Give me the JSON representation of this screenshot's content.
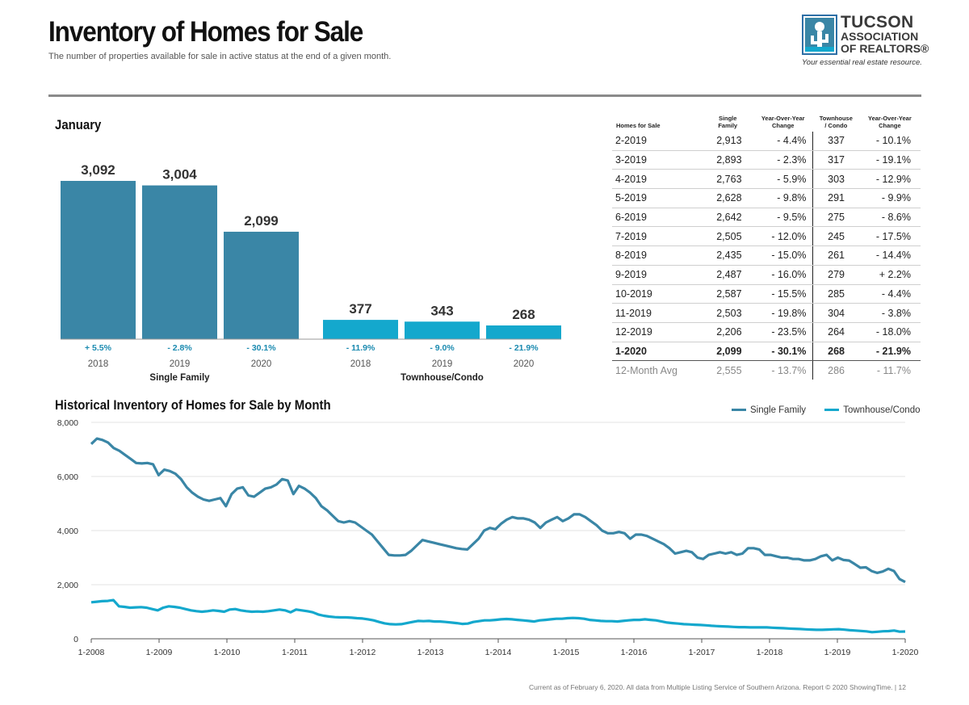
{
  "header": {
    "title": "Inventory of Homes for Sale",
    "subtitle": "The number of properties available for sale in active status at the end of a given month."
  },
  "logo": {
    "line1": "TUCSON",
    "line2": "ASSOCIATION",
    "line3": "OF REALTORS®",
    "tagline": "Your essential real estate resource."
  },
  "footnote": "Current as of February 6, 2020. All data from Multiple Listing Service of Southern Arizona. Report © 2020 ShowingTime. | 12",
  "colors": {
    "single_family": "#3a86a6",
    "townhouse": "#14a8cd",
    "change_text": "#1a8ab0"
  },
  "chart_data": [
    {
      "type": "bar",
      "title": "January",
      "groups": [
        {
          "name": "Single Family",
          "bars": [
            {
              "year": "2018",
              "value": 3092,
              "label": "3,092",
              "change": "+ 5.5%"
            },
            {
              "year": "2019",
              "value": 3004,
              "label": "3,004",
              "change": "- 2.8%"
            },
            {
              "year": "2020",
              "value": 2099,
              "label": "2,099",
              "change": "- 30.1%"
            }
          ]
        },
        {
          "name": "Townhouse/Condo",
          "bars": [
            {
              "year": "2018",
              "value": 377,
              "label": "377",
              "change": "- 11.9%"
            },
            {
              "year": "2019",
              "value": 343,
              "label": "343",
              "change": "- 9.0%"
            },
            {
              "year": "2020",
              "value": 268,
              "label": "268",
              "change": "- 21.9%"
            }
          ]
        }
      ]
    },
    {
      "type": "table",
      "headers": [
        [
          "Homes for Sale"
        ],
        [
          "Single",
          "Family"
        ],
        [
          "Year-Over-Year",
          "Change"
        ],
        [
          "Townhouse",
          "/ Condo"
        ],
        [
          "Year-Over-Year",
          "Change"
        ]
      ],
      "rows": [
        [
          "2-2019",
          "2,913",
          "- 4.4%",
          "337",
          "- 10.1%"
        ],
        [
          "3-2019",
          "2,893",
          "- 2.3%",
          "317",
          "- 19.1%"
        ],
        [
          "4-2019",
          "2,763",
          "- 5.9%",
          "303",
          "- 12.9%"
        ],
        [
          "5-2019",
          "2,628",
          "- 9.8%",
          "291",
          "- 9.9%"
        ],
        [
          "6-2019",
          "2,642",
          "- 9.5%",
          "275",
          "- 8.6%"
        ],
        [
          "7-2019",
          "2,505",
          "- 12.0%",
          "245",
          "- 17.5%"
        ],
        [
          "8-2019",
          "2,435",
          "- 15.0%",
          "261",
          "- 14.4%"
        ],
        [
          "9-2019",
          "2,487",
          "- 16.0%",
          "279",
          "+ 2.2%"
        ],
        [
          "10-2019",
          "2,587",
          "- 15.5%",
          "285",
          "- 4.4%"
        ],
        [
          "11-2019",
          "2,503",
          "- 19.8%",
          "304",
          "- 3.8%"
        ],
        [
          "12-2019",
          "2,206",
          "- 23.5%",
          "264",
          "- 18.0%"
        ],
        [
          "1-2020",
          "2,099",
          "- 30.1%",
          "268",
          "- 21.9%"
        ]
      ],
      "average_row": [
        "12-Month Avg",
        "2,555",
        "- 13.7%",
        "286",
        "- 11.7%"
      ]
    },
    {
      "type": "line",
      "title": "Historical Inventory of Homes for Sale by Month",
      "xlabel": "",
      "ylabel": "",
      "ylim": [
        0,
        8000
      ],
      "yticks": [
        0,
        2000,
        4000,
        6000,
        8000
      ],
      "ytick_labels": [
        "0",
        "2,000",
        "4,000",
        "6,000",
        "8,000"
      ],
      "xtick_labels": [
        "1-2008",
        "1-2009",
        "1-2010",
        "1-2011",
        "1-2012",
        "1-2013",
        "1-2014",
        "1-2015",
        "1-2016",
        "1-2017",
        "1-2018",
        "1-2019",
        "1-2020"
      ],
      "x_start": "1-2008",
      "x_end": "1-2020",
      "grid": true,
      "legend_position": "top-right",
      "series": [
        {
          "name": "Single Family",
          "values": [
            7200,
            7400,
            7350,
            7250,
            7050,
            6950,
            6800,
            6650,
            6500,
            6480,
            6500,
            6450,
            6050,
            6250,
            6200,
            6100,
            5900,
            5600,
            5400,
            5250,
            5150,
            5100,
            5150,
            5200,
            4900,
            5350,
            5550,
            5600,
            5300,
            5250,
            5400,
            5550,
            5600,
            5700,
            5900,
            5850,
            5350,
            5650,
            5550,
            5400,
            5200,
            4900,
            4750,
            4550,
            4350,
            4300,
            4350,
            4300,
            4150,
            4000,
            3850,
            3600,
            3350,
            3100,
            3080,
            3080,
            3100,
            3250,
            3450,
            3650,
            3600,
            3550,
            3500,
            3450,
            3400,
            3350,
            3320,
            3300,
            3500,
            3700,
            4000,
            4100,
            4050,
            4250,
            4400,
            4500,
            4450,
            4450,
            4400,
            4300,
            4100,
            4300,
            4400,
            4500,
            4350,
            4450,
            4600,
            4600,
            4500,
            4350,
            4200,
            4000,
            3900,
            3900,
            3950,
            3900,
            3700,
            3850,
            3850,
            3800,
            3700,
            3600,
            3500,
            3350,
            3150,
            3200,
            3250,
            3200,
            3000,
            2950,
            3100,
            3150,
            3200,
            3150,
            3200,
            3100,
            3150,
            3350,
            3350,
            3300,
            3100,
            3100,
            3050,
            3000,
            3000,
            2950,
            2950,
            2900,
            2900,
            2950,
            3050,
            3100,
            2900,
            3000,
            2913,
            2893,
            2763,
            2628,
            2642,
            2505,
            2435,
            2487,
            2587,
            2503,
            2206,
            2099
          ]
        },
        {
          "name": "Townhouse/Condo",
          "values": [
            1350,
            1370,
            1390,
            1400,
            1430,
            1200,
            1180,
            1150,
            1160,
            1170,
            1150,
            1100,
            1050,
            1150,
            1200,
            1180,
            1150,
            1100,
            1050,
            1020,
            1000,
            1020,
            1050,
            1030,
            1000,
            1080,
            1100,
            1050,
            1020,
            1000,
            1010,
            1000,
            1020,
            1050,
            1080,
            1050,
            980,
            1080,
            1050,
            1020,
            980,
            900,
            850,
            820,
            800,
            790,
            790,
            780,
            760,
            750,
            720,
            680,
            620,
            570,
            540,
            530,
            540,
            580,
            620,
            660,
            650,
            660,
            640,
            640,
            620,
            600,
            580,
            550,
            560,
            620,
            650,
            680,
            680,
            700,
            720,
            730,
            720,
            700,
            680,
            660,
            640,
            680,
            700,
            720,
            740,
            740,
            760,
            770,
            760,
            740,
            700,
            680,
            660,
            650,
            650,
            640,
            660,
            680,
            700,
            700,
            720,
            700,
            680,
            640,
            600,
            580,
            560,
            540,
            530,
            520,
            510,
            500,
            480,
            470,
            460,
            450,
            440,
            430,
            430,
            420,
            420,
            420,
            420,
            410,
            400,
            390,
            380,
            370,
            360,
            350,
            340,
            330,
            330,
            340,
            350,
            355,
            337,
            317,
            303,
            291,
            275,
            245,
            261,
            279,
            285,
            304,
            264,
            268
          ]
        }
      ]
    }
  ]
}
